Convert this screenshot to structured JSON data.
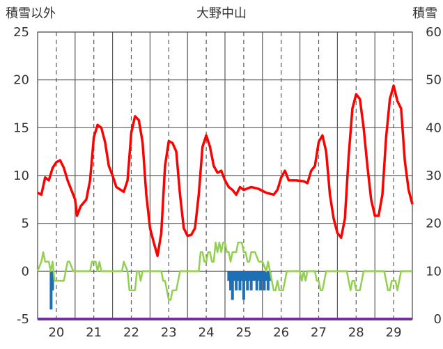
{
  "chart_data": {
    "type": "line",
    "title": "大野中山",
    "left_axis_label": "積雪以外",
    "right_axis_label": "積雪",
    "left_ylim": [
      -5,
      25
    ],
    "left_ticks": [
      25,
      20,
      15,
      10,
      5,
      0,
      -5
    ],
    "right_ylim": [
      0,
      60
    ],
    "right_ticks": [
      60,
      50,
      40,
      30,
      20,
      10,
      0
    ],
    "x_ticks": [
      "20",
      "21",
      "22",
      "23",
      "24",
      "25",
      "26",
      "27",
      "28",
      "29"
    ],
    "x_tick_values": [
      20,
      21,
      22,
      23,
      24,
      25,
      26,
      27,
      28,
      29
    ],
    "xlim": [
      19.5,
      29.5
    ],
    "gridlines": {
      "vertical_dashed_at_days": true,
      "vertical_solid_between_days": true,
      "horizontal_solid": true
    },
    "colors": {
      "temperature": "#ff0000",
      "wind": "#92d050",
      "precip": "#1f6fb5",
      "snow": "#7030a0"
    },
    "series": [
      {
        "key": "temperature",
        "axis": "left",
        "points": [
          [
            19.5,
            8.2
          ],
          [
            19.6,
            8.0
          ],
          [
            19.7,
            9.8
          ],
          [
            19.8,
            9.5
          ],
          [
            19.9,
            10.8
          ],
          [
            20.0,
            11.4
          ],
          [
            20.1,
            11.6
          ],
          [
            20.2,
            10.8
          ],
          [
            20.3,
            9.5
          ],
          [
            20.4,
            8.5
          ],
          [
            20.5,
            7.5
          ],
          [
            20.55,
            5.8
          ],
          [
            20.65,
            6.8
          ],
          [
            20.8,
            7.5
          ],
          [
            20.9,
            9.5
          ],
          [
            21.0,
            14.0
          ],
          [
            21.1,
            15.3
          ],
          [
            21.2,
            15.0
          ],
          [
            21.3,
            13.5
          ],
          [
            21.4,
            11.0
          ],
          [
            21.5,
            10.0
          ],
          [
            21.6,
            8.8
          ],
          [
            21.8,
            8.3
          ],
          [
            21.9,
            9.5
          ],
          [
            22.0,
            14.5
          ],
          [
            22.1,
            16.2
          ],
          [
            22.2,
            15.8
          ],
          [
            22.3,
            13.5
          ],
          [
            22.4,
            8.0
          ],
          [
            22.5,
            4.5
          ],
          [
            22.6,
            3.0
          ],
          [
            22.7,
            1.6
          ],
          [
            22.8,
            4.0
          ],
          [
            22.9,
            11.0
          ],
          [
            23.0,
            13.6
          ],
          [
            23.1,
            13.4
          ],
          [
            23.2,
            12.5
          ],
          [
            23.3,
            8.0
          ],
          [
            23.4,
            4.5
          ],
          [
            23.5,
            3.7
          ],
          [
            23.6,
            3.8
          ],
          [
            23.7,
            4.5
          ],
          [
            23.8,
            8.0
          ],
          [
            23.9,
            13.0
          ],
          [
            24.0,
            14.2
          ],
          [
            24.1,
            13.0
          ],
          [
            24.2,
            11.0
          ],
          [
            24.3,
            10.3
          ],
          [
            24.4,
            10.5
          ],
          [
            24.5,
            9.5
          ],
          [
            24.6,
            8.8
          ],
          [
            24.7,
            8.5
          ],
          [
            24.8,
            8.0
          ],
          [
            24.9,
            8.8
          ],
          [
            25.0,
            8.5
          ],
          [
            25.2,
            8.8
          ],
          [
            25.4,
            8.6
          ],
          [
            25.6,
            8.2
          ],
          [
            25.8,
            8.0
          ],
          [
            25.9,
            8.5
          ],
          [
            26.0,
            9.8
          ],
          [
            26.1,
            10.5
          ],
          [
            26.2,
            9.5
          ],
          [
            26.4,
            9.5
          ],
          [
            26.6,
            9.4
          ],
          [
            26.7,
            9.2
          ],
          [
            26.8,
            10.5
          ],
          [
            26.9,
            11.0
          ],
          [
            27.0,
            13.5
          ],
          [
            27.1,
            14.2
          ],
          [
            27.2,
            12.5
          ],
          [
            27.3,
            8.0
          ],
          [
            27.4,
            5.5
          ],
          [
            27.5,
            4.0
          ],
          [
            27.6,
            3.5
          ],
          [
            27.7,
            5.5
          ],
          [
            27.8,
            12.0
          ],
          [
            27.9,
            17.0
          ],
          [
            28.0,
            18.5
          ],
          [
            28.1,
            18.0
          ],
          [
            28.2,
            15.0
          ],
          [
            28.3,
            11.0
          ],
          [
            28.4,
            7.5
          ],
          [
            28.5,
            5.8
          ],
          [
            28.6,
            5.8
          ],
          [
            28.7,
            8.0
          ],
          [
            28.8,
            14.0
          ],
          [
            28.9,
            18.0
          ],
          [
            29.0,
            19.4
          ],
          [
            29.1,
            17.8
          ],
          [
            29.2,
            17.0
          ],
          [
            29.3,
            11.5
          ],
          [
            29.4,
            8.5
          ],
          [
            29.5,
            7.0
          ]
        ]
      },
      {
        "key": "wind",
        "axis": "left",
        "points": [
          [
            19.5,
            0
          ],
          [
            19.6,
            1
          ],
          [
            19.65,
            2
          ],
          [
            19.7,
            1
          ],
          [
            19.8,
            1
          ],
          [
            19.85,
            0
          ],
          [
            19.9,
            1
          ],
          [
            19.95,
            -1
          ],
          [
            20.05,
            -1
          ],
          [
            20.2,
            -1
          ],
          [
            20.25,
            0
          ],
          [
            20.3,
            1
          ],
          [
            20.35,
            1
          ],
          [
            20.45,
            0
          ],
          [
            20.5,
            0
          ],
          [
            20.9,
            0
          ],
          [
            20.95,
            1
          ],
          [
            21.0,
            1
          ],
          [
            21.05,
            1
          ],
          [
            21.1,
            0
          ],
          [
            21.15,
            1
          ],
          [
            21.2,
            0
          ],
          [
            21.75,
            0
          ],
          [
            21.8,
            1
          ],
          [
            21.9,
            0
          ],
          [
            21.95,
            -2
          ],
          [
            22.1,
            -2
          ],
          [
            22.15,
            0
          ],
          [
            22.2,
            0
          ],
          [
            22.25,
            -1
          ],
          [
            22.3,
            0
          ],
          [
            22.8,
            0
          ],
          [
            22.85,
            -1
          ],
          [
            22.9,
            -1
          ],
          [
            22.95,
            -2
          ],
          [
            23.0,
            -3
          ],
          [
            23.05,
            -3
          ],
          [
            23.1,
            -2
          ],
          [
            23.2,
            -2
          ],
          [
            23.3,
            0
          ],
          [
            23.8,
            0
          ],
          [
            23.85,
            2
          ],
          [
            23.9,
            2
          ],
          [
            23.95,
            1
          ],
          [
            24.0,
            1
          ],
          [
            24.05,
            2
          ],
          [
            24.1,
            2
          ],
          [
            24.15,
            1
          ],
          [
            24.2,
            1
          ],
          [
            24.25,
            3
          ],
          [
            24.3,
            2
          ],
          [
            24.35,
            3
          ],
          [
            24.4,
            2
          ],
          [
            24.45,
            3
          ],
          [
            24.5,
            3
          ],
          [
            24.55,
            2
          ],
          [
            24.6,
            2
          ],
          [
            24.65,
            1
          ],
          [
            24.7,
            2
          ],
          [
            24.8,
            2
          ],
          [
            24.85,
            3
          ],
          [
            24.9,
            3
          ],
          [
            24.95,
            3
          ],
          [
            25.0,
            2
          ],
          [
            25.05,
            2
          ],
          [
            25.1,
            1
          ],
          [
            25.15,
            1
          ],
          [
            25.2,
            2
          ],
          [
            25.3,
            2
          ],
          [
            25.4,
            1
          ],
          [
            25.5,
            1
          ],
          [
            25.6,
            0
          ],
          [
            25.65,
            1
          ],
          [
            25.7,
            0
          ],
          [
            25.75,
            -1
          ],
          [
            25.8,
            -2
          ],
          [
            25.85,
            -2
          ],
          [
            25.9,
            -1
          ],
          [
            25.95,
            -2
          ],
          [
            26.05,
            -2
          ],
          [
            26.1,
            -1
          ],
          [
            26.15,
            0
          ],
          [
            26.5,
            0
          ],
          [
            26.55,
            -1
          ],
          [
            26.6,
            0
          ],
          [
            26.65,
            -1
          ],
          [
            26.7,
            0
          ],
          [
            26.9,
            0
          ],
          [
            26.95,
            -1
          ],
          [
            27.0,
            -1
          ],
          [
            27.05,
            -2
          ],
          [
            27.1,
            -2
          ],
          [
            27.15,
            -1
          ],
          [
            27.2,
            0
          ],
          [
            27.75,
            0
          ],
          [
            27.8,
            -1
          ],
          [
            27.85,
            -2
          ],
          [
            27.9,
            -1
          ],
          [
            27.95,
            -1
          ],
          [
            28.0,
            -2
          ],
          [
            28.05,
            -2
          ],
          [
            28.1,
            -2
          ],
          [
            28.15,
            -1
          ],
          [
            28.2,
            0
          ],
          [
            28.75,
            0
          ],
          [
            28.8,
            -1
          ],
          [
            28.85,
            -2
          ],
          [
            28.9,
            -2
          ],
          [
            28.95,
            -1
          ],
          [
            29.0,
            -1
          ],
          [
            29.05,
            -1
          ],
          [
            29.1,
            -2
          ],
          [
            29.15,
            -1
          ],
          [
            29.2,
            0
          ],
          [
            29.5,
            0
          ]
        ]
      }
    ],
    "precip": {
      "axis": "left",
      "bars": [
        [
          19.86,
          -4.0
        ],
        [
          19.9,
          -2.0
        ],
        [
          24.6,
          -1.0
        ],
        [
          24.65,
          -2.0
        ],
        [
          24.7,
          -3.0
        ],
        [
          24.75,
          -1.0
        ],
        [
          24.8,
          -2.0
        ],
        [
          24.85,
          -1.0
        ],
        [
          24.9,
          -2.0
        ],
        [
          24.95,
          -1.0
        ],
        [
          25.0,
          -3.0
        ],
        [
          25.05,
          -1.0
        ],
        [
          25.1,
          -2.0
        ],
        [
          25.15,
          -1.0
        ],
        [
          25.2,
          -2.0
        ],
        [
          25.25,
          -1.0
        ],
        [
          25.3,
          -1.0
        ],
        [
          25.35,
          -2.0
        ],
        [
          25.4,
          -1.0
        ],
        [
          25.45,
          -2.0
        ],
        [
          25.5,
          -1.0
        ],
        [
          25.55,
          -2.0
        ],
        [
          25.6,
          -1.0
        ],
        [
          25.65,
          -2.0
        ],
        [
          25.7,
          -1.0
        ]
      ]
    },
    "snow": {
      "axis": "right",
      "points": [
        [
          19.5,
          0
        ],
        [
          29.5,
          0
        ]
      ]
    }
  }
}
